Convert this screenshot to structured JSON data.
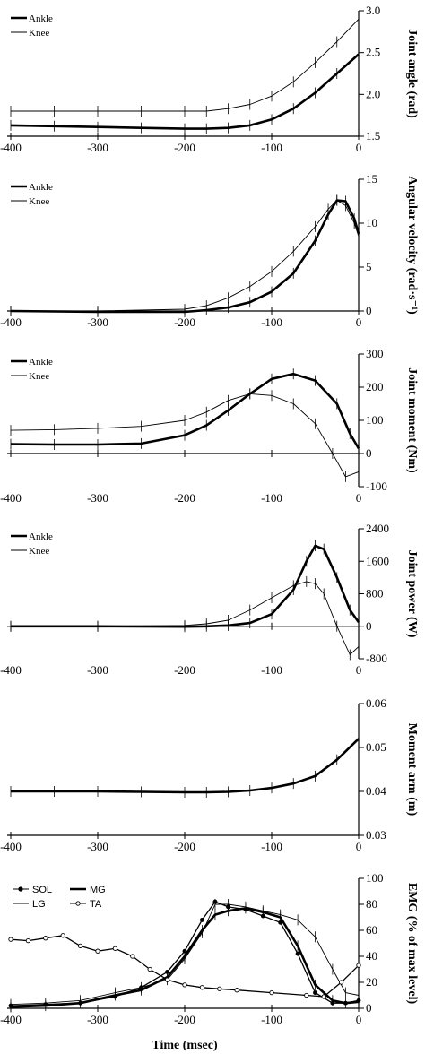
{
  "chart_data": [
    {
      "type": "line",
      "ylabel": "Joint angle (rad)",
      "xlim": [
        -400,
        0
      ],
      "ylim": [
        1.5,
        3.0
      ],
      "xticks": [
        -400,
        -300,
        -200,
        -100,
        0
      ],
      "yticks": [
        "1.5",
        "2.0",
        "2.5",
        "3.0"
      ],
      "legend_position": "top-left",
      "series": [
        {
          "name": "Ankle",
          "weight": "thick",
          "x": [
            -400,
            -350,
            -300,
            -250,
            -200,
            -175,
            -150,
            -125,
            -100,
            -75,
            -50,
            -25,
            0
          ],
          "y": [
            1.63,
            1.62,
            1.61,
            1.6,
            1.59,
            1.59,
            1.6,
            1.63,
            1.7,
            1.83,
            2.02,
            2.25,
            2.48
          ]
        },
        {
          "name": "Knee",
          "weight": "thin",
          "x": [
            -400,
            -350,
            -300,
            -250,
            -200,
            -175,
            -150,
            -125,
            -100,
            -75,
            -50,
            -25,
            0
          ],
          "y": [
            1.8,
            1.8,
            1.8,
            1.8,
            1.8,
            1.8,
            1.83,
            1.88,
            1.98,
            2.15,
            2.38,
            2.63,
            2.9
          ]
        }
      ]
    },
    {
      "type": "line",
      "ylabel": "Angular velocity (rad·s⁻¹)",
      "xlim": [
        -400,
        0
      ],
      "ylim": [
        0,
        15
      ],
      "xticks": [
        -400,
        -300,
        -200,
        -100,
        0
      ],
      "yticks": [
        "0",
        "5",
        "10",
        "15"
      ],
      "legend_position": "top-left",
      "series": [
        {
          "name": "Ankle",
          "weight": "thick",
          "x": [
            -400,
            -300,
            -200,
            -175,
            -150,
            -125,
            -100,
            -75,
            -50,
            -35,
            -25,
            -15,
            -5,
            0
          ],
          "y": [
            0,
            -0.1,
            -0.1,
            0.1,
            0.4,
            1.0,
            2.2,
            4.3,
            8.0,
            11.0,
            12.6,
            12.5,
            10.5,
            8.8
          ]
        },
        {
          "name": "Knee",
          "weight": "thin",
          "x": [
            -400,
            -300,
            -200,
            -175,
            -150,
            -125,
            -100,
            -75,
            -50,
            -35,
            -25,
            -15,
            -5,
            0
          ],
          "y": [
            0,
            0,
            0.2,
            0.6,
            1.5,
            2.8,
            4.5,
            6.8,
            9.6,
            11.6,
            12.6,
            12.0,
            10.0,
            8.5
          ]
        }
      ]
    },
    {
      "type": "line",
      "ylabel": "Joint moment (Nm)",
      "xlim": [
        -400,
        0
      ],
      "ylim": [
        -100,
        300
      ],
      "xticks": [
        -400,
        -300,
        -200,
        -100,
        0
      ],
      "yticks": [
        "-100",
        "0",
        "100",
        "200",
        "300"
      ],
      "legend_position": "top-left",
      "series": [
        {
          "name": "Ankle",
          "weight": "thick",
          "x": [
            -400,
            -350,
            -300,
            -250,
            -200,
            -175,
            -150,
            -125,
            -100,
            -75,
            -50,
            -25,
            -10,
            0
          ],
          "y": [
            28,
            27,
            27,
            30,
            55,
            85,
            130,
            180,
            225,
            240,
            220,
            150,
            60,
            15
          ]
        },
        {
          "name": "Knee",
          "weight": "thin",
          "x": [
            -400,
            -350,
            -300,
            -250,
            -200,
            -175,
            -150,
            -125,
            -100,
            -75,
            -50,
            -30,
            -15,
            0
          ],
          "y": [
            70,
            72,
            76,
            82,
            100,
            125,
            160,
            180,
            175,
            150,
            90,
            0,
            -70,
            -55
          ]
        }
      ]
    },
    {
      "type": "line",
      "ylabel": "Joint power (W)",
      "xlim": [
        -400,
        0
      ],
      "ylim": [
        -800,
        2400
      ],
      "xticks": [
        -400,
        -300,
        -200,
        -100,
        0
      ],
      "yticks": [
        "-800",
        "0",
        "800",
        "1600",
        "2400"
      ],
      "legend_position": "top-left",
      "series": [
        {
          "name": "Ankle",
          "weight": "thick",
          "x": [
            -400,
            -300,
            -200,
            -175,
            -150,
            -125,
            -100,
            -75,
            -60,
            -50,
            -40,
            -25,
            -10,
            0
          ],
          "y": [
            0,
            0,
            -10,
            0,
            20,
            80,
            300,
            900,
            1600,
            1980,
            1900,
            1200,
            400,
            100
          ]
        },
        {
          "name": "Knee",
          "weight": "thin",
          "x": [
            -400,
            -300,
            -200,
            -175,
            -150,
            -125,
            -100,
            -75,
            -60,
            -50,
            -40,
            -25,
            -10,
            0
          ],
          "y": [
            0,
            0,
            20,
            60,
            150,
            400,
            700,
            1000,
            1100,
            1050,
            800,
            0,
            -700,
            -500
          ]
        }
      ]
    },
    {
      "type": "line",
      "ylabel": "Moment arm (m)",
      "xlim": [
        -400,
        0
      ],
      "ylim": [
        0.03,
        0.06
      ],
      "xticks": [
        -400,
        -300,
        -200,
        -100,
        0
      ],
      "yticks": [
        "0.03",
        "0.04",
        "0.05",
        "0.06"
      ],
      "series": [
        {
          "weight": "thick",
          "x": [
            -400,
            -350,
            -300,
            -250,
            -200,
            -175,
            -150,
            -125,
            -100,
            -75,
            -50,
            -25,
            0
          ],
          "y": [
            0.04,
            0.04,
            0.04,
            0.0399,
            0.0398,
            0.0398,
            0.0399,
            0.0402,
            0.0408,
            0.0418,
            0.0435,
            0.0472,
            0.052
          ]
        }
      ]
    },
    {
      "type": "line",
      "ylabel": "EMG (% of max level)",
      "xlabel": "Time (msec)",
      "xlim": [
        -400,
        0
      ],
      "ylim": [
        0,
        100
      ],
      "xticks": [
        -400,
        -300,
        -200,
        -100,
        0
      ],
      "yticks": [
        "0",
        "20",
        "40",
        "60",
        "80",
        "100"
      ],
      "legend_position": "top-left",
      "series": [
        {
          "name": "SOL",
          "marker": "dot",
          "x": [
            -400,
            -360,
            -320,
            -280,
            -250,
            -220,
            -200,
            -180,
            -165,
            -150,
            -130,
            -110,
            -90,
            -70,
            -50,
            -30,
            -15,
            0
          ],
          "y": [
            2,
            3,
            4,
            9,
            16,
            28,
            44,
            68,
            82,
            78,
            76,
            71,
            66,
            42,
            12,
            4,
            4,
            6
          ]
        },
        {
          "name": "MG",
          "weight": "thick",
          "x": [
            -400,
            -360,
            -320,
            -280,
            -250,
            -220,
            -200,
            -180,
            -165,
            -150,
            -130,
            -110,
            -90,
            -70,
            -50,
            -30,
            -15,
            0
          ],
          "y": [
            1,
            2,
            4,
            10,
            14,
            24,
            40,
            60,
            72,
            75,
            77,
            74,
            70,
            48,
            18,
            6,
            4,
            5
          ]
        },
        {
          "name": "LG",
          "weight": "thin",
          "x": [
            -400,
            -360,
            -320,
            -280,
            -250,
            -220,
            -200,
            -180,
            -165,
            -150,
            -130,
            -110,
            -90,
            -70,
            -50,
            -30,
            -15,
            0
          ],
          "y": [
            3,
            4,
            6,
            12,
            16,
            22,
            38,
            58,
            80,
            80,
            78,
            75,
            72,
            68,
            55,
            30,
            12,
            10
          ]
        },
        {
          "name": "TA",
          "marker": "circle",
          "x": [
            -400,
            -380,
            -360,
            -340,
            -320,
            -300,
            -280,
            -260,
            -240,
            -220,
            -200,
            -180,
            -160,
            -140,
            -100,
            -60,
            -40,
            -20,
            0
          ],
          "y": [
            53,
            52,
            54,
            56,
            48,
            44,
            46,
            40,
            30,
            22,
            18,
            16,
            15,
            14,
            12,
            10,
            9,
            20,
            33
          ]
        }
      ]
    }
  ]
}
